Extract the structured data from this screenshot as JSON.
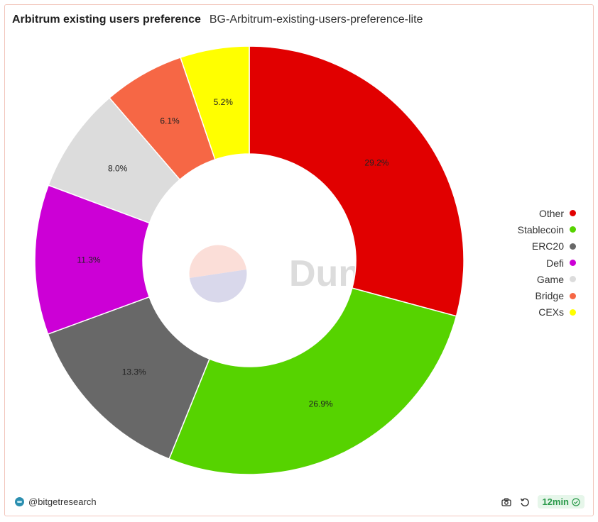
{
  "header": {
    "title": "Arbitrum existing users preference",
    "subtitle": "BG-Arbitrum-existing-users-preference-lite"
  },
  "watermark": {
    "text": "Dune",
    "logo_colors": [
      "#fbded8",
      "#d9d8eb"
    ]
  },
  "footer": {
    "author": "@bitgetresearch",
    "refresh_badge": "12min",
    "icons": [
      "camera-icon",
      "refresh-icon",
      "check-circle-icon"
    ]
  },
  "chart_data": {
    "type": "pie",
    "donut": true,
    "legend_position": "right",
    "categories": [
      "Other",
      "Stablecoin",
      "ERC20",
      "Defi",
      "Game",
      "Bridge",
      "CEXs"
    ],
    "values": [
      29.2,
      26.9,
      13.3,
      11.3,
      8.0,
      6.1,
      5.2
    ],
    "labels": [
      "29.2%",
      "26.9%",
      "13.3%",
      "11.3%",
      "8.0%",
      "6.1%",
      "5.2%"
    ],
    "colors": [
      "#e10000",
      "#56d300",
      "#686868",
      "#cc00d6",
      "#dcdcdc",
      "#f66745",
      "#ffff00"
    ]
  }
}
